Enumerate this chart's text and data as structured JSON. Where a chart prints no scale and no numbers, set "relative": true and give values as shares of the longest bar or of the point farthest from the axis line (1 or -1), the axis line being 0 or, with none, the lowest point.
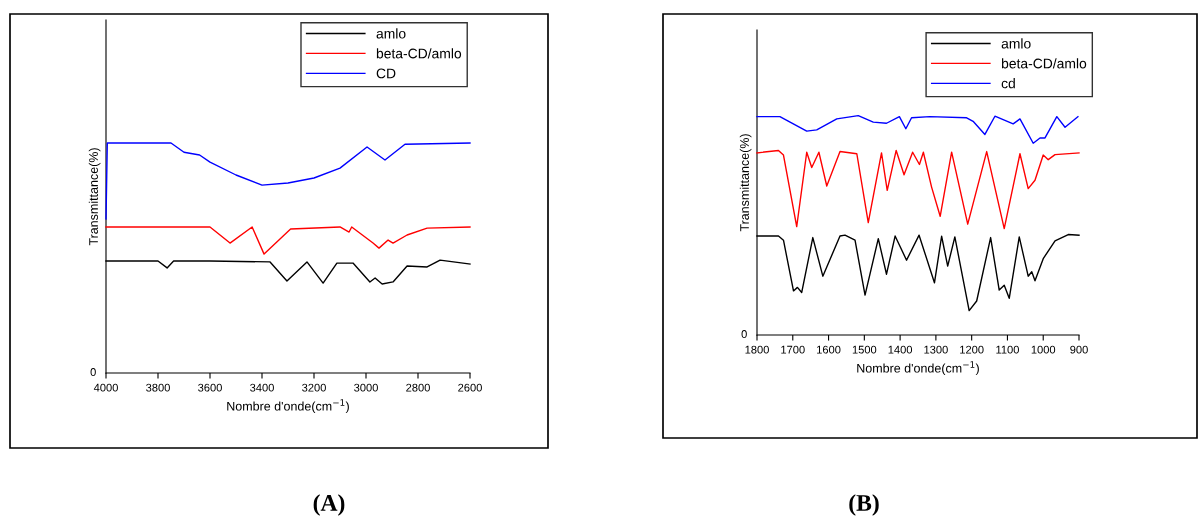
{
  "chart_data": [
    {
      "type": "line",
      "xlabel": "Nombre d'onde(cm$^{−1}$)",
      "ylabel": "Transmittance(%)",
      "relative": true,
      "xlim": [
        4000,
        2600
      ],
      "xticks": [
        4000,
        3800,
        3600,
        3400,
        3200,
        3000,
        2800,
        2600
      ],
      "legend": "top right",
      "grid": false,
      "annotations": [
        "(A)",
        "0"
      ],
      "series": [
        {
          "name": "amlo",
          "color": "#000000",
          "x": [
            4000,
            3800,
            3765,
            3740,
            3600,
            3369,
            3304,
            3227,
            3165,
            3112,
            3050,
            2985,
            2965,
            2938,
            2896,
            2842,
            2765,
            2715,
            2600
          ],
          "values": [
            0.487,
            0.487,
            0.457,
            0.487,
            0.487,
            0.483,
            0.4,
            0.483,
            0.391,
            0.478,
            0.478,
            0.396,
            0.413,
            0.387,
            0.396,
            0.465,
            0.461,
            0.491,
            0.474
          ]
        },
        {
          "name": "beta-CD/amlo",
          "color": "#ff0000",
          "x": [
            4000,
            3600,
            3523,
            3438,
            3392,
            3290,
            3100,
            3065,
            3055,
            2973,
            2950,
            2915,
            2896,
            2842,
            2765,
            2600
          ],
          "values": [
            0.635,
            0.635,
            0.565,
            0.635,
            0.517,
            0.626,
            0.635,
            0.613,
            0.635,
            0.565,
            0.543,
            0.578,
            0.565,
            0.6,
            0.63,
            0.635
          ]
        },
        {
          "name": "CD",
          "color": "#0000ff",
          "x": [
            4000,
            3995,
            3800,
            3750,
            3700,
            3640,
            3600,
            3500,
            3400,
            3300,
            3200,
            3100,
            2996,
            2927,
            2850,
            2600
          ],
          "values": [
            0.67,
            1.0,
            1.0,
            1.0,
            0.96,
            0.948,
            0.917,
            0.861,
            0.817,
            0.826,
            0.848,
            0.891,
            0.983,
            0.926,
            0.995,
            1.0
          ]
        }
      ]
    },
    {
      "type": "line",
      "xlabel": "Nombre d'onde(cm$^{−1}$)",
      "ylabel": "Transmittance(%)",
      "relative": true,
      "xlim": [
        1800,
        900
      ],
      "xticks": [
        1800,
        1700,
        1600,
        1500,
        1400,
        1300,
        1200,
        1100,
        1000,
        900
      ],
      "legend": "top right",
      "grid": false,
      "annotations": [
        "(B)",
        "0"
      ],
      "series": [
        {
          "name": "amlo",
          "color": "#000000",
          "x": [
            1800,
            1740,
            1726,
            1698,
            1687,
            1675,
            1644,
            1616,
            1568,
            1554,
            1526,
            1498,
            1461,
            1438,
            1414,
            1382,
            1347,
            1304,
            1284,
            1267,
            1247,
            1207,
            1186,
            1147,
            1123,
            1109,
            1095,
            1067,
            1042,
            1032,
            1023,
            1000,
            967,
            930,
            900
          ],
          "values": [
            0.451,
            0.451,
            0.432,
            0.201,
            0.217,
            0.194,
            0.444,
            0.268,
            0.451,
            0.455,
            0.432,
            0.182,
            0.439,
            0.277,
            0.451,
            0.341,
            0.455,
            0.238,
            0.45,
            0.314,
            0.447,
            0.111,
            0.155,
            0.444,
            0.205,
            0.227,
            0.167,
            0.447,
            0.268,
            0.288,
            0.247,
            0.348,
            0.429,
            0.458,
            0.455
          ]
        },
        {
          "name": "beta-CD/amlo",
          "color": "#ff0000",
          "x": [
            1800,
            1740,
            1726,
            1689,
            1661,
            1647,
            1627,
            1605,
            1568,
            1521,
            1489,
            1452,
            1436,
            1411,
            1389,
            1365,
            1346,
            1335,
            1312,
            1288,
            1256,
            1211,
            1158,
            1109,
            1065,
            1042,
            1023,
            1000,
            986,
            967,
            900
          ],
          "values": [
            0.83,
            0.841,
            0.82,
            0.494,
            0.833,
            0.763,
            0.833,
            0.679,
            0.836,
            0.826,
            0.512,
            0.83,
            0.659,
            0.841,
            0.73,
            0.833,
            0.777,
            0.833,
            0.674,
            0.541,
            0.833,
            0.505,
            0.836,
            0.485,
            0.826,
            0.667,
            0.705,
            0.82,
            0.799,
            0.822,
            0.83
          ]
        },
        {
          "name": "cd",
          "color": "#0000ff",
          "x": [
            1800,
            1736,
            1661,
            1633,
            1577,
            1517,
            1475,
            1438,
            1402,
            1384,
            1368,
            1317,
            1214,
            1196,
            1163,
            1135,
            1084,
            1065,
            1028,
            1009,
            995,
            962,
            939,
            903
          ],
          "values": [
            0.995,
            0.995,
            0.929,
            0.935,
            0.985,
            1.0,
            0.97,
            0.965,
            0.995,
            0.94,
            0.99,
            0.995,
            0.99,
            0.974,
            0.914,
            0.997,
            0.962,
            0.985,
            0.874,
            0.898,
            0.898,
            0.995,
            0.947,
            0.995
          ]
        }
      ]
    }
  ]
}
